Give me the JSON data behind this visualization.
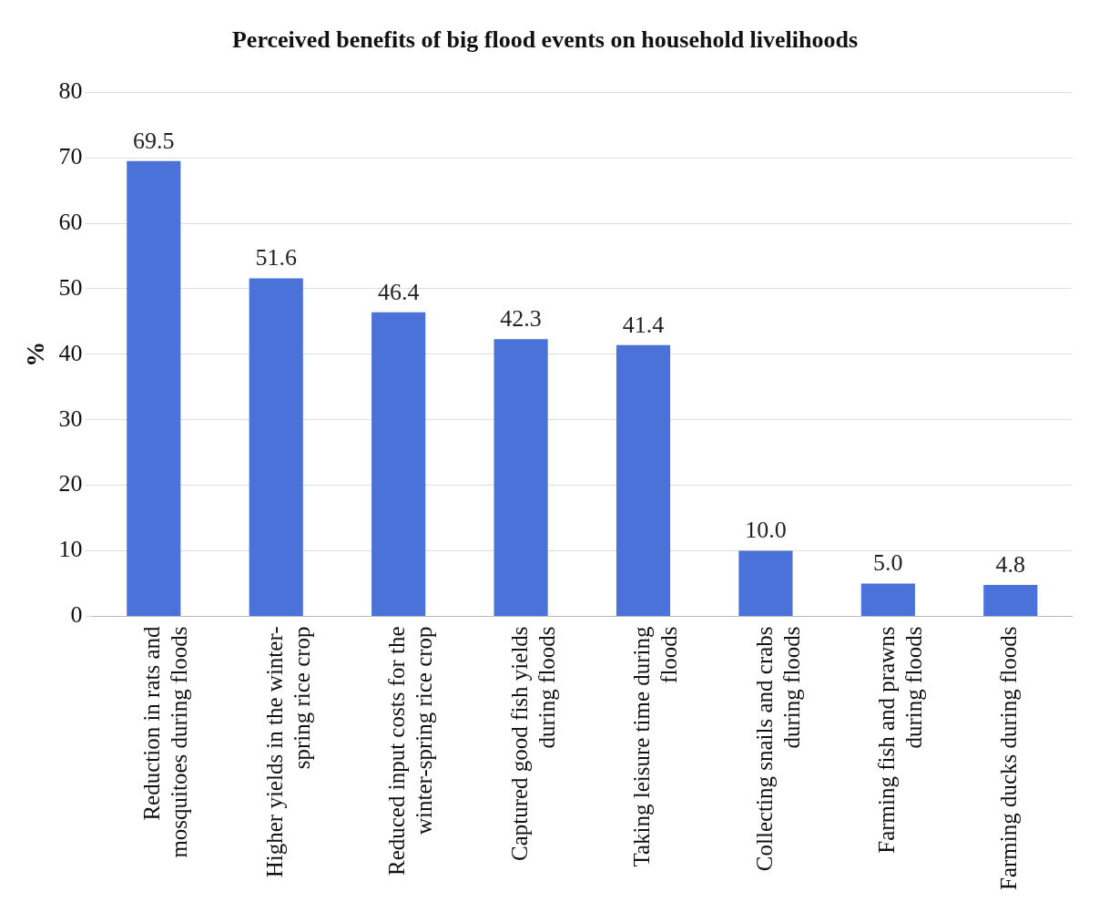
{
  "chart_data": {
    "type": "bar",
    "title": "Perceived benefits of big flood events on household livelihoods",
    "ylabel": "%",
    "categories": [
      "Reduction in rats and mosquitoes during floods",
      "Higher yields in the winter-spring rice crop",
      "Reduced input costs for the winter-spring rice crop",
      "Captured good fish yields during floods",
      "Taking leisure time during floods",
      "Collecting snails and crabs during floods",
      "Farming fish and prawns during floods",
      "Farming ducks during floods"
    ],
    "values": [
      69.5,
      51.6,
      46.4,
      42.3,
      41.4,
      10.0,
      5.0,
      4.8
    ],
    "value_labels": [
      "69.5",
      "51.6",
      "46.4",
      "42.3",
      "41.4",
      "10.0",
      "5.0",
      "4.8"
    ],
    "color": "#4a72d8",
    "ylim": [
      0,
      80
    ],
    "yticks": [
      0,
      10,
      20,
      30,
      40,
      50,
      60,
      70,
      80
    ],
    "grid": "y"
  }
}
